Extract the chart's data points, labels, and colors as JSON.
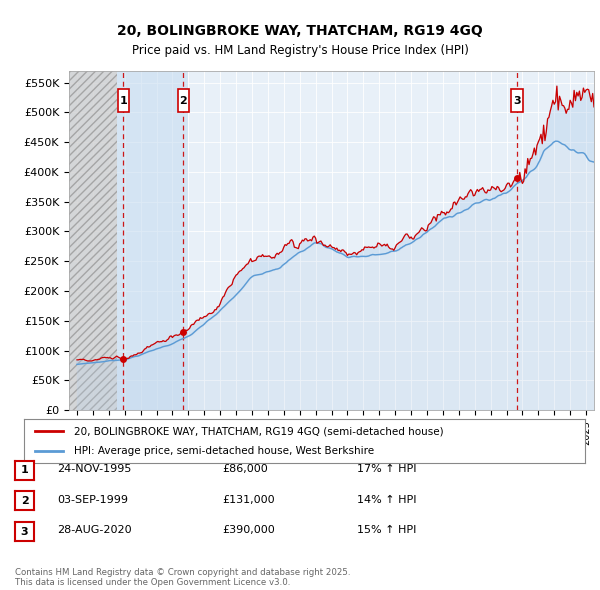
{
  "title_line1": "20, BOLINGBROKE WAY, THATCHAM, RG19 4GQ",
  "title_line2": "Price paid vs. HM Land Registry's House Price Index (HPI)",
  "yticks": [
    0,
    50000,
    100000,
    150000,
    200000,
    250000,
    300000,
    350000,
    400000,
    450000,
    500000,
    550000
  ],
  "ytick_labels": [
    "£0",
    "£50K",
    "£100K",
    "£150K",
    "£200K",
    "£250K",
    "£300K",
    "£350K",
    "£400K",
    "£450K",
    "£500K",
    "£550K"
  ],
  "ylim": [
    0,
    570000
  ],
  "xlim_start": 1992.5,
  "xlim_end": 2025.5,
  "transactions": [
    {
      "num": 1,
      "date": "24-NOV-1995",
      "year": 1995.9,
      "price": 86000,
      "pct": "17%",
      "label": "1"
    },
    {
      "num": 2,
      "date": "03-SEP-1999",
      "year": 1999.67,
      "price": 131000,
      "pct": "14%",
      "label": "2"
    },
    {
      "num": 3,
      "date": "28-AUG-2020",
      "year": 2020.66,
      "price": 390000,
      "pct": "15%",
      "label": "3"
    }
  ],
  "legend_line1": "20, BOLINGBROKE WAY, THATCHAM, RG19 4GQ (semi-detached house)",
  "legend_line2": "HPI: Average price, semi-detached house, West Berkshire",
  "footer": "Contains HM Land Registry data © Crown copyright and database right 2025.\nThis data is licensed under the Open Government Licence v3.0.",
  "red_color": "#cc0000",
  "blue_line_color": "#5b9bd5",
  "blue_fill_color": "#ddeeff",
  "chart_bg": "#e8f0f8",
  "hatch_end_year": 1995.5,
  "blue_shade_start": 1995.5,
  "blue_shade_end": 2000.0
}
